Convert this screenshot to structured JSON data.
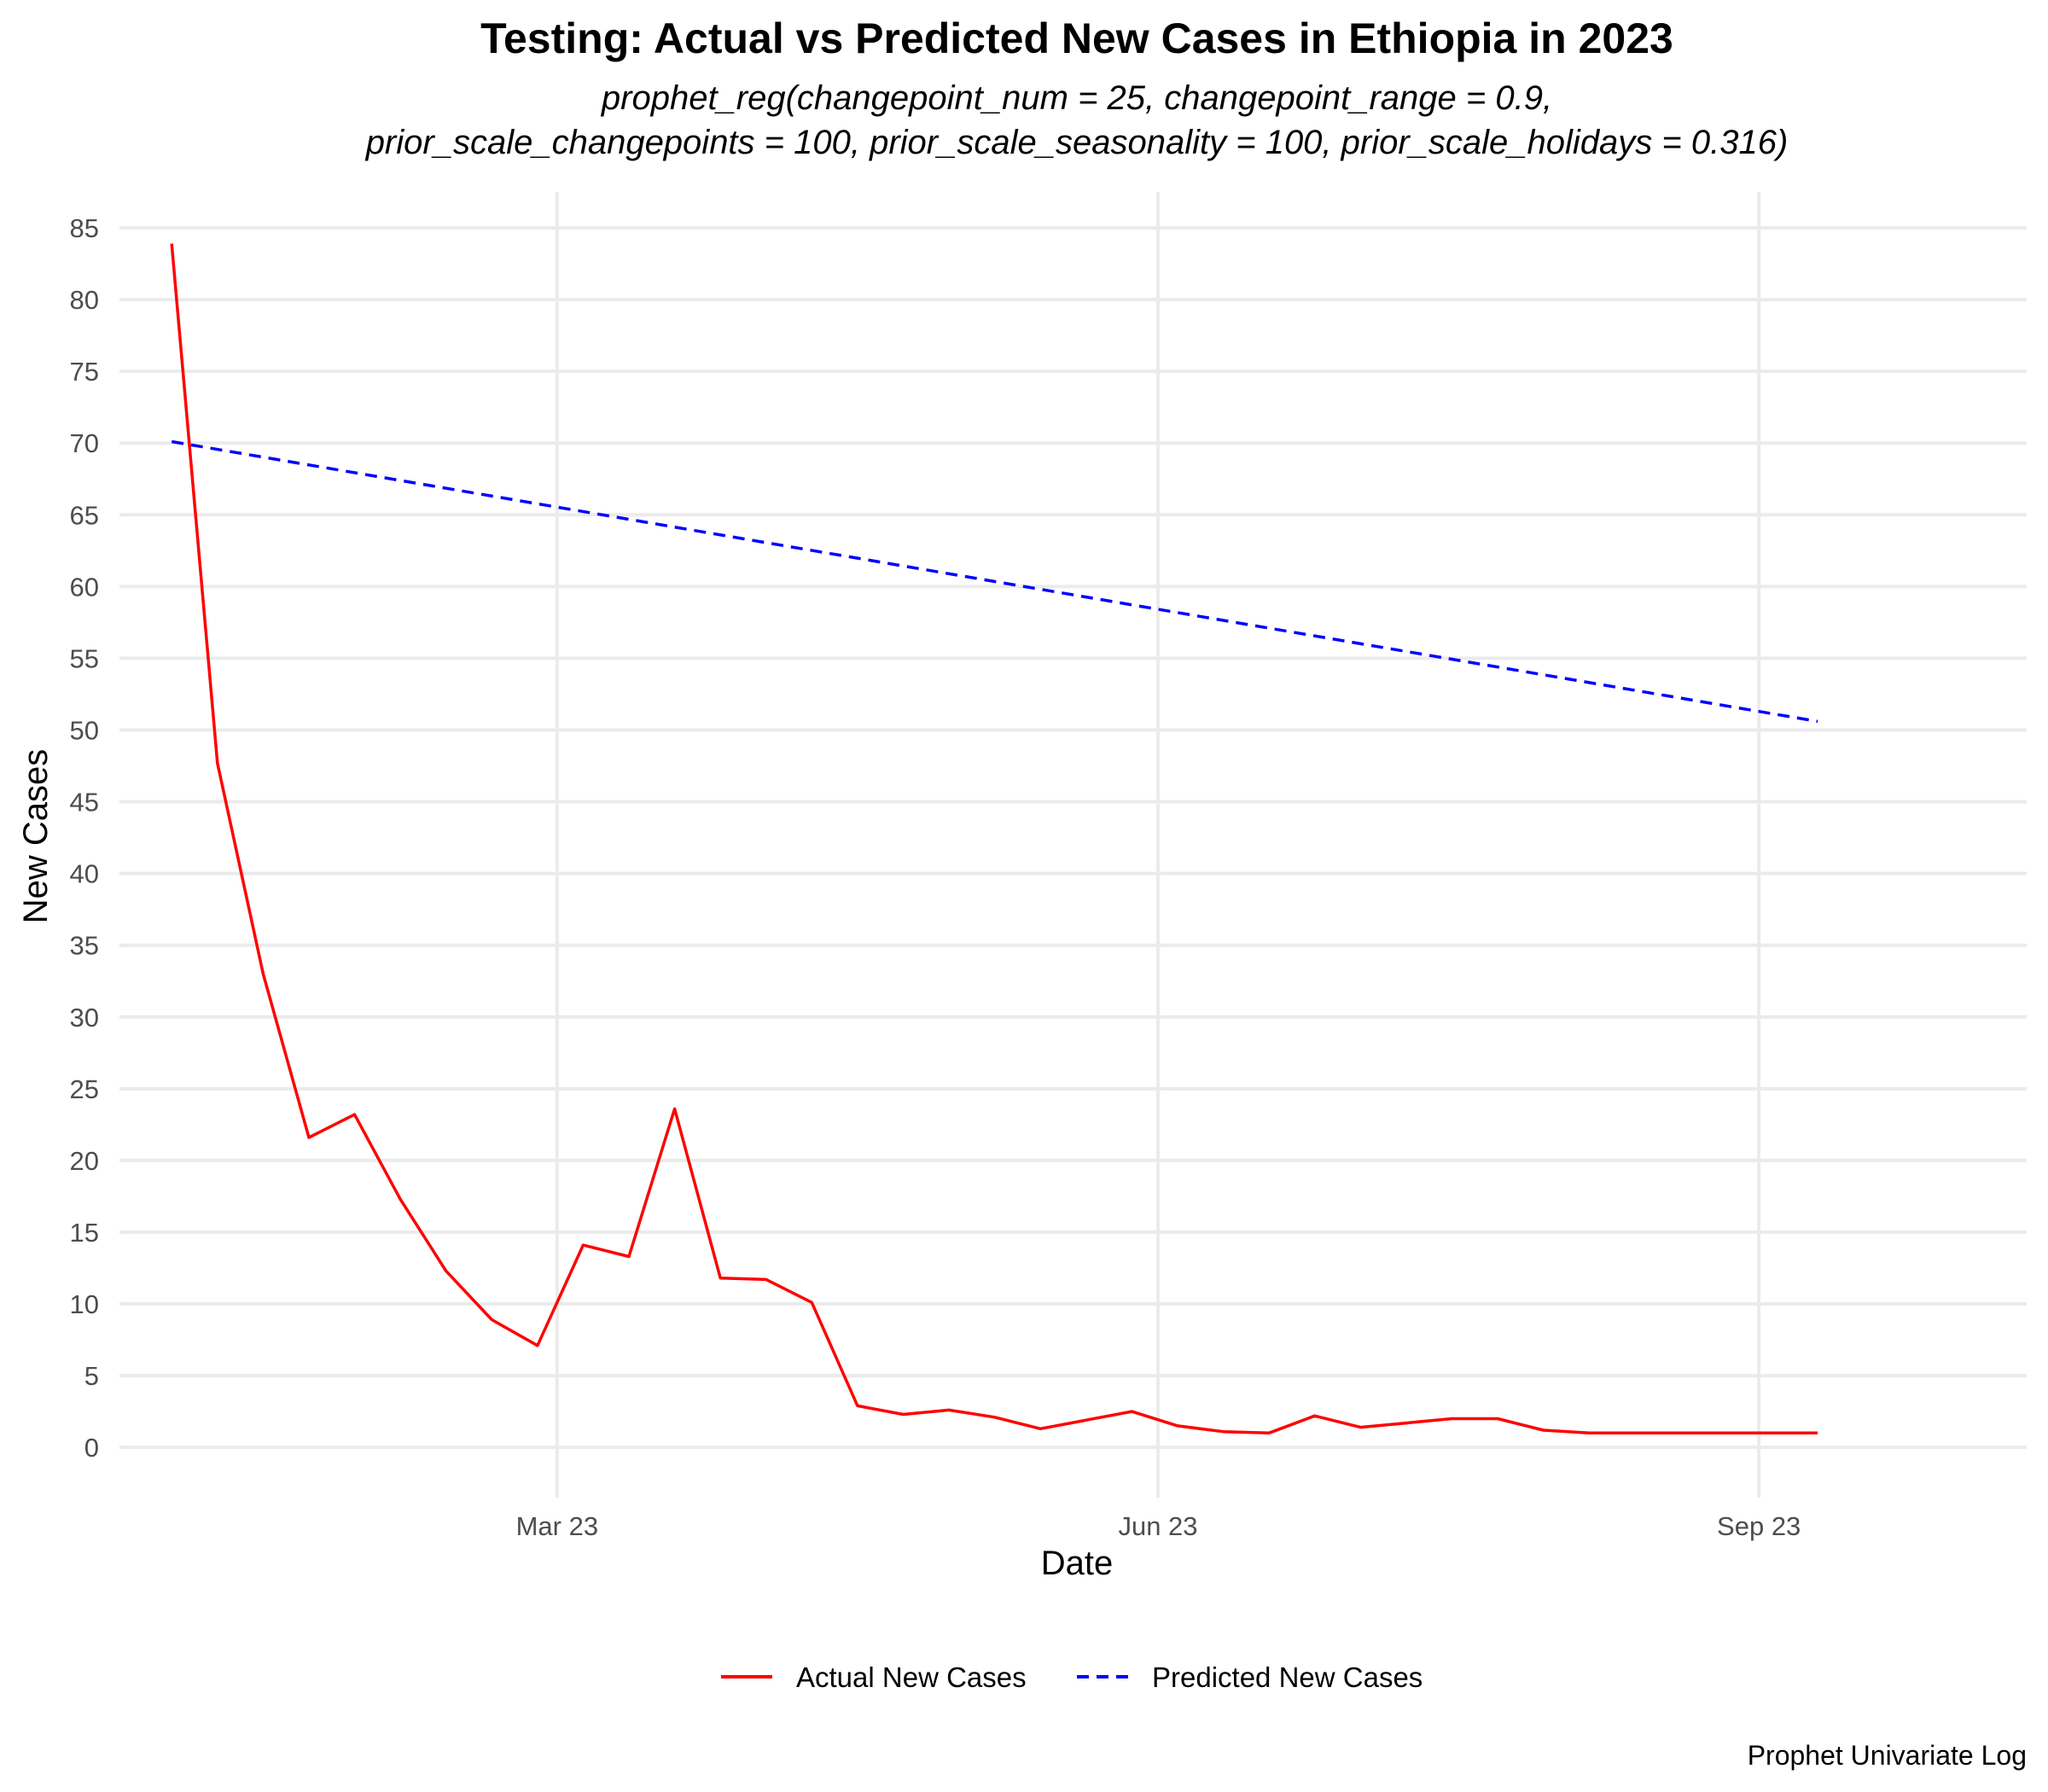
{
  "chart_data": {
    "type": "line",
    "title": "Testing: Actual vs Predicted New Cases in Ethiopia in 2023",
    "subtitle_lines": [
      "prophet_reg(changepoint_num = 25, changepoint_range = 0.9,",
      "prior_scale_changepoints = 100, prior_scale_seasonality = 100, prior_scale_holidays = 0.316)"
    ],
    "xlabel": "Date",
    "ylabel": "New Cases",
    "caption": "Prophet Univariate Log",
    "x_ticks": [
      {
        "date": "2023-03-01",
        "label": "Mar 23"
      },
      {
        "date": "2023-06-01",
        "label": "Jun 23"
      },
      {
        "date": "2023-09-01",
        "label": "Sep 23"
      }
    ],
    "xlim": [
      "2022-12-24",
      "2023-10-12"
    ],
    "ylim": [
      -3.5,
      87.5
    ],
    "y_ticks": [
      0,
      5,
      10,
      15,
      20,
      25,
      30,
      35,
      40,
      45,
      50,
      55,
      60,
      65,
      70,
      75,
      80,
      85
    ],
    "grid": true,
    "legend_position": "bottom",
    "series": [
      {
        "name": "Actual New Cases",
        "color": "#ff0000",
        "dash": "solid",
        "x": [
          "2023-01-01",
          "2023-01-08",
          "2023-01-15",
          "2023-01-22",
          "2023-01-29",
          "2023-02-05",
          "2023-02-12",
          "2023-02-19",
          "2023-02-26",
          "2023-03-05",
          "2023-03-12",
          "2023-03-19",
          "2023-03-26",
          "2023-04-02",
          "2023-04-09",
          "2023-04-16",
          "2023-04-23",
          "2023-04-30",
          "2023-05-07",
          "2023-05-14",
          "2023-05-21",
          "2023-05-28",
          "2023-06-04",
          "2023-06-11",
          "2023-06-18",
          "2023-06-25",
          "2023-07-02",
          "2023-07-09",
          "2023-07-16",
          "2023-07-23",
          "2023-07-30",
          "2023-08-06",
          "2023-08-13",
          "2023-08-20",
          "2023-08-27",
          "2023-09-03",
          "2023-09-10"
        ],
        "values": [
          83.9,
          47.7,
          33.0,
          21.6,
          23.2,
          17.3,
          12.3,
          8.9,
          7.1,
          14.1,
          13.3,
          23.6,
          11.8,
          11.7,
          10.1,
          2.9,
          2.3,
          2.6,
          2.1,
          1.3,
          1.9,
          2.5,
          1.5,
          1.1,
          1.0,
          2.2,
          1.4,
          1.7,
          2.0,
          2.0,
          1.2,
          1.0,
          1.0,
          1.0,
          1.0,
          1.0,
          1.0
        ]
      },
      {
        "name": "Predicted New Cases",
        "color": "#0000ff",
        "dash": "dashed",
        "x": [
          "2023-01-01",
          "2023-09-10"
        ],
        "values": [
          70.1,
          50.6
        ]
      }
    ]
  }
}
